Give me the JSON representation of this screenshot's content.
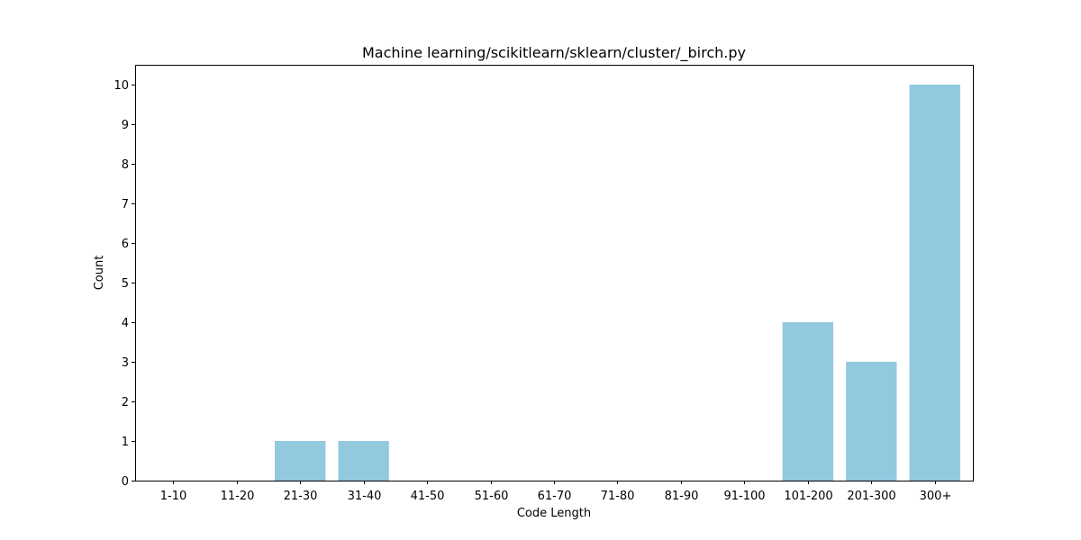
{
  "chart_data": {
    "type": "bar",
    "title": "Machine learning/scikitlearn/sklearn/cluster/_birch.py",
    "xlabel": "Code Length",
    "ylabel": "Count",
    "categories": [
      "1-10",
      "11-20",
      "21-30",
      "31-40",
      "41-50",
      "51-60",
      "61-70",
      "71-80",
      "81-90",
      "91-100",
      "101-200",
      "201-300",
      "300+"
    ],
    "values": [
      0,
      0,
      1,
      1,
      0,
      0,
      0,
      0,
      0,
      0,
      4,
      3,
      10
    ],
    "ylim": [
      0,
      10.5
    ],
    "yticks": [
      0,
      1,
      2,
      3,
      4,
      5,
      6,
      7,
      8,
      9,
      10
    ],
    "grid": false,
    "bar_color": "#92c9df"
  }
}
